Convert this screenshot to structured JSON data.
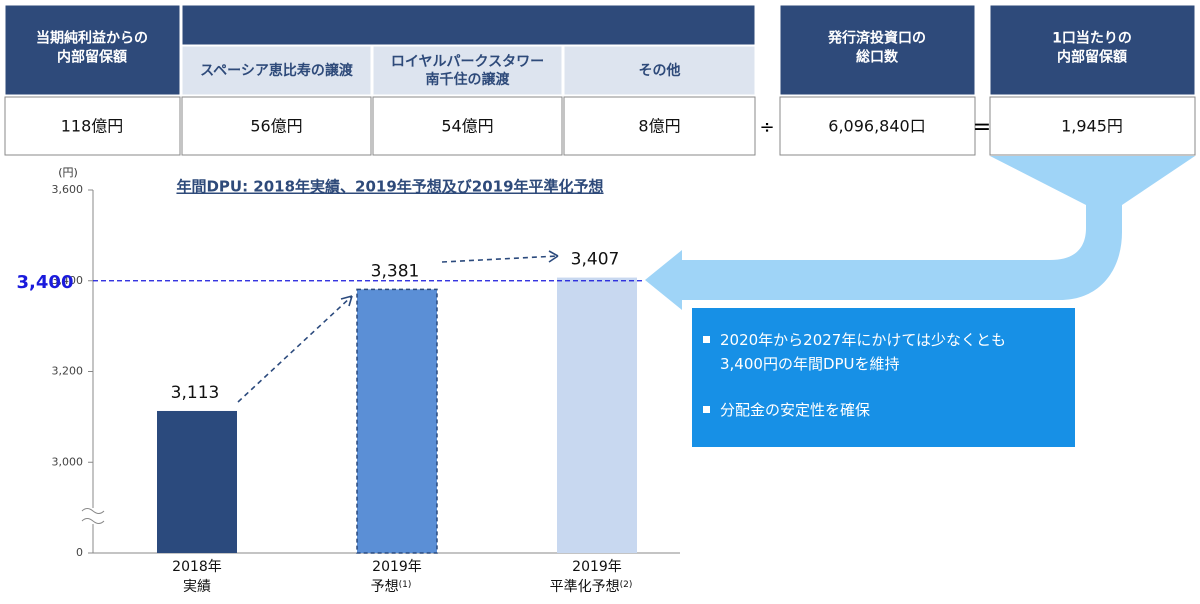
{
  "table": {
    "retained": {
      "header": [
        "当期純利益からの",
        "内部留保額"
      ],
      "value": "118億円"
    },
    "breakdown": [
      {
        "header": [
          "スペーシア恵比寿の譲渡"
        ],
        "value": "56億円"
      },
      {
        "header": [
          "ロイヤルパークスタワー",
          "南千住の譲渡"
        ],
        "value": "54億円"
      },
      {
        "header": [
          "その他"
        ],
        "value": "8億円"
      }
    ],
    "divide": "÷",
    "units": {
      "header": [
        "発行済投資口の",
        "総口数"
      ],
      "value": "6,096,840口"
    },
    "equals": "=",
    "per_unit": {
      "header": [
        "1口当たりの",
        "内部留保額"
      ],
      "value": "1,945円"
    }
  },
  "chart_data": {
    "type": "bar",
    "title": "年間DPU: 2018年実績、2019年予想及び2019年平準化予想",
    "y_unit": "(円)",
    "categories": [
      [
        "2018年",
        "実績"
      ],
      [
        "2019年",
        "予想",
        "(1)"
      ],
      [
        "2019年",
        "平準化予想",
        "(2)"
      ]
    ],
    "values": [
      3113,
      3381,
      3407
    ],
    "value_labels": [
      "3,113",
      "3,381",
      "3,407"
    ],
    "colors": [
      "#2b4a7d",
      "#5b8fd6",
      "#c8d8f0"
    ],
    "ylim": [
      2800,
      3600
    ],
    "axis_break": true,
    "yticks": [
      {
        "value": 0,
        "label": "0"
      },
      {
        "value": 3000,
        "label": "3,000"
      },
      {
        "value": 3200,
        "label": "3,200"
      },
      {
        "value": 3400,
        "label": "3,400"
      },
      {
        "value": 3600,
        "label": "3,600"
      }
    ],
    "reference_line": {
      "value": 3400,
      "label": "3,400",
      "color": "#1a1adc"
    }
  },
  "note": {
    "bullets": [
      [
        "2020年から2027年にかけては少なくとも",
        "3,400円の年間DPUを維持"
      ],
      [
        "分配金の安定性を確保"
      ]
    ]
  }
}
